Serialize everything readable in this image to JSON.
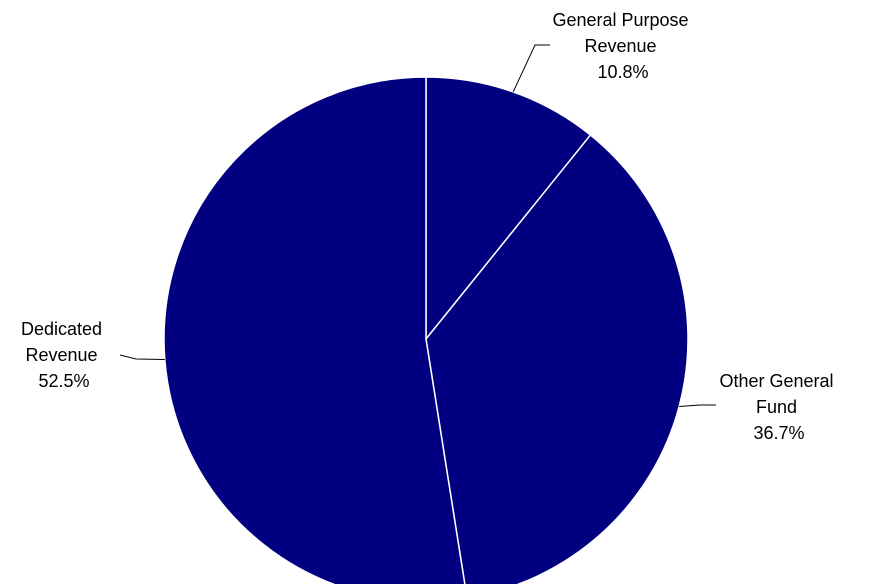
{
  "chart_data": {
    "type": "pie",
    "title": "",
    "slices": [
      {
        "label_lines": [
          "General Purpose",
          "Revenue"
        ],
        "value": 10.8,
        "value_label": "10.8%"
      },
      {
        "label_lines": [
          "Other General",
          "Fund"
        ],
        "value": 36.7,
        "value_label": "36.7%"
      },
      {
        "label_lines": [
          "Dedicated",
          "Revenue"
        ],
        "value": 52.5,
        "value_label": "52.5%"
      }
    ],
    "start_angle_deg": 0,
    "direction": "clockwise",
    "slice_color": "#000080",
    "edge_color": "#ffffff",
    "legend": "none"
  }
}
